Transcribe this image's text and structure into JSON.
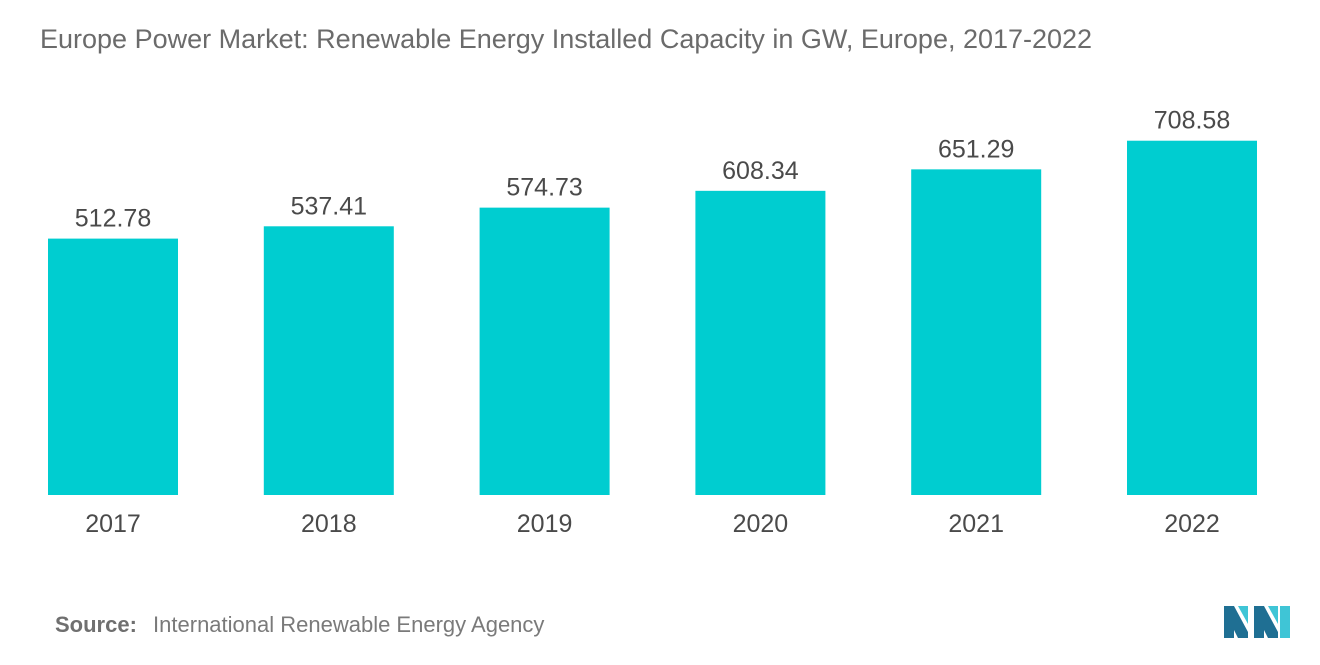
{
  "title": "Europe Power Market: Renewable Energy Installed Capacity in GW, Europe, 2017-2022",
  "source": {
    "label": "Source:",
    "text": "International Renewable Energy Agency"
  },
  "logo": {
    "icon": "mordor-intelligence-logo-icon"
  },
  "colors": {
    "bar": "#00cdd0",
    "title": "#6b6b6b",
    "labels": "#4a4a4a",
    "logo_dark": "#1f6f93",
    "logo_light": "#3fc5d6"
  },
  "chart_data": {
    "type": "bar",
    "categories": [
      "2017",
      "2018",
      "2019",
      "2020",
      "2021",
      "2022"
    ],
    "values": [
      512.78,
      537.41,
      574.73,
      608.34,
      651.29,
      708.58
    ],
    "data_labels": [
      "512.78",
      "537.41",
      "574.73",
      "608.34",
      "651.29",
      "708.58"
    ],
    "title": "Europe Power Market: Renewable Energy Installed Capacity in GW, Europe, 2017-2022",
    "xlabel": "",
    "ylabel": "",
    "ylim": [
      0,
      990
    ],
    "grid": false,
    "legend": "none"
  }
}
